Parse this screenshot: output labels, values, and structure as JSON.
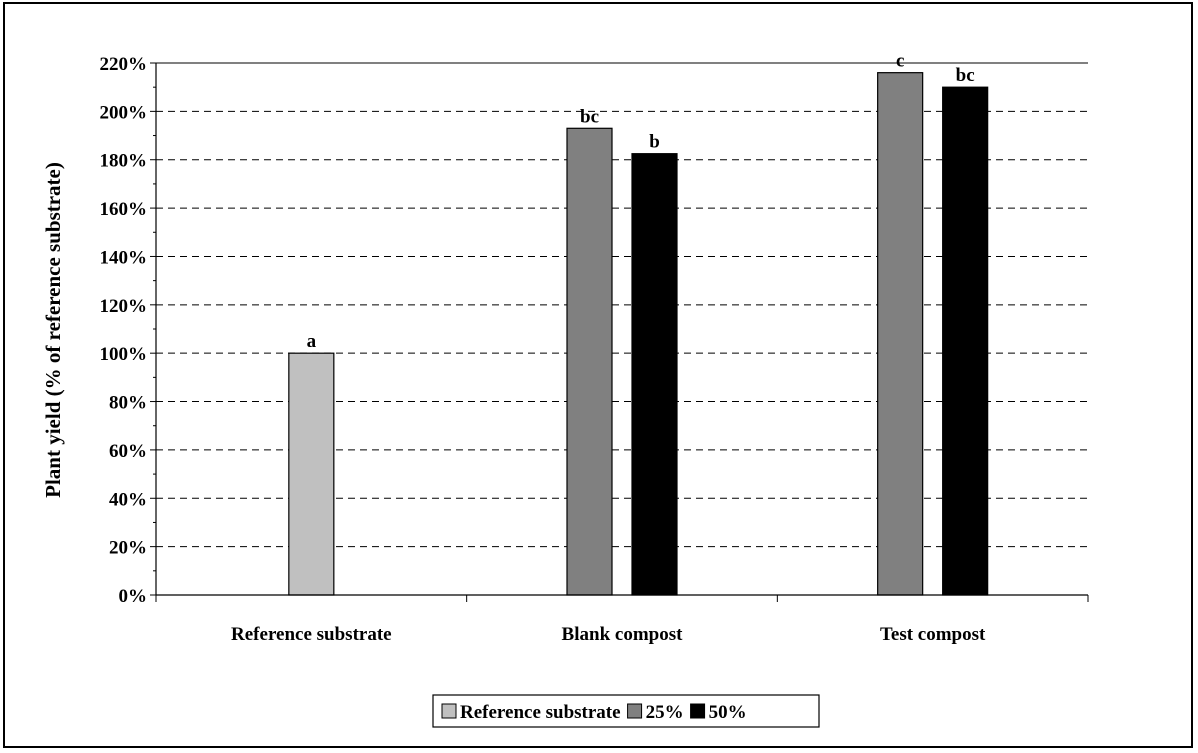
{
  "chart_data": {
    "type": "bar",
    "title": "",
    "xlabel": "",
    "ylabel": "Plant yield (% of reference substrate)",
    "ylim": [
      0,
      220
    ],
    "ytick_step": 20,
    "ytick_suffix": "%",
    "grid": "horizontal-dashed",
    "legend_position": "bottom-center",
    "categories": [
      "Reference substrate",
      "Blank compost",
      "Test compost"
    ],
    "series": [
      {
        "name": "Reference substrate",
        "color": "#c0c0c0",
        "values": [
          100,
          null,
          null
        ],
        "labels": [
          "a",
          "",
          ""
        ]
      },
      {
        "name": "25%",
        "color": "#808080",
        "values": [
          null,
          193,
          216
        ],
        "labels": [
          "",
          "bc",
          "c"
        ]
      },
      {
        "name": "50%",
        "color": "#000000",
        "values": [
          null,
          182.5,
          210
        ],
        "labels": [
          "",
          "b",
          "bc"
        ]
      }
    ]
  }
}
